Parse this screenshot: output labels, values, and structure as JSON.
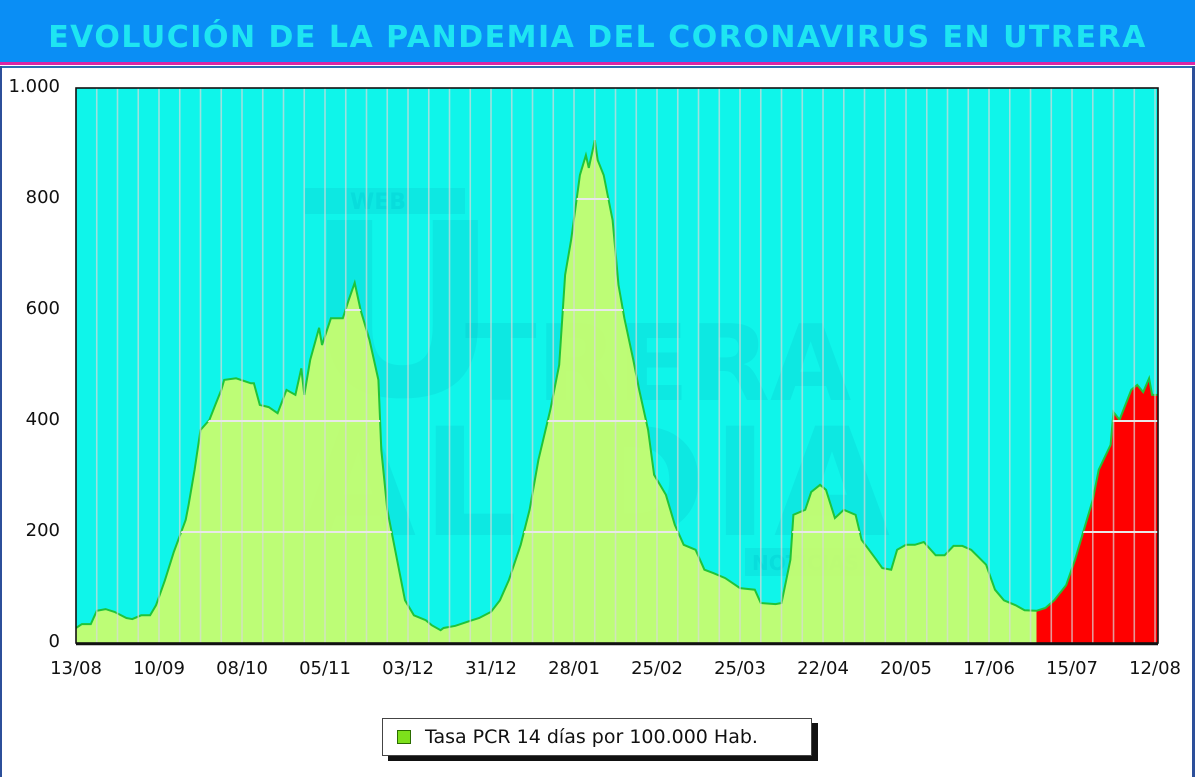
{
  "header": {
    "title": "EVOLUCIÓN DE LA PANDEMIA DEL CORONAVIRUS EN UTRERA"
  },
  "watermark": {
    "line1": "WEB",
    "line2": "U",
    "line3": "TRERA",
    "line4": "AL DIA",
    "line5": "NOTICIAS"
  },
  "legend": {
    "label": "Tasa PCR 14 días por 100.000 Hab.",
    "swatch_color": "#7de01b"
  },
  "colors": {
    "plot_background": "#0ff5ea",
    "area_fill": "#ccfd6b",
    "area_line": "#1fc43a",
    "highlight_fill": "#ff0000",
    "gridline": "#d9d9d9",
    "banner": "#0a8ef5",
    "banner_text": "#1ee5f2"
  },
  "chart_data": {
    "type": "area",
    "title": "EVOLUCIÓN DE LA PANDEMIA DEL CORONAVIRUS EN UTRERA",
    "xlabel": "",
    "ylabel": "",
    "ylim": [
      0,
      1000
    ],
    "yticks": [
      0,
      200,
      400,
      600,
      800,
      1000
    ],
    "ytick_labels": [
      "0",
      "200",
      "400",
      "600",
      "800",
      "1.000"
    ],
    "x_range_days": [
      0,
      365
    ],
    "xtick_days": [
      0,
      28,
      56,
      84,
      112,
      140,
      168,
      196,
      224,
      252,
      280,
      308,
      336,
      364
    ],
    "xtick_labels": [
      "13/08",
      "10/09",
      "08/10",
      "05/11",
      "03/12",
      "31/12",
      "28/01",
      "25/02",
      "25/03",
      "22/04",
      "20/05",
      "17/06",
      "15/07",
      "12/08"
    ],
    "grid": {
      "vertical_every_days": 7,
      "horizontal": true
    },
    "legend_position": "bottom-center",
    "highlight_from_day": 324,
    "series": [
      {
        "name": "Tasa PCR 14 días por 100.000 Hab.",
        "points": [
          [
            0,
            27
          ],
          [
            2,
            34
          ],
          [
            5,
            34
          ],
          [
            7,
            58
          ],
          [
            10,
            61
          ],
          [
            13,
            56
          ],
          [
            17,
            45
          ],
          [
            19,
            43
          ],
          [
            22,
            50
          ],
          [
            25,
            50
          ],
          [
            27,
            68
          ],
          [
            30,
            113
          ],
          [
            33,
            164
          ],
          [
            37,
            222
          ],
          [
            38,
            249
          ],
          [
            40,
            312
          ],
          [
            42,
            384
          ],
          [
            45,
            402
          ],
          [
            47,
            429
          ],
          [
            49,
            456
          ],
          [
            50,
            474
          ],
          [
            54,
            477
          ],
          [
            59,
            468
          ],
          [
            60,
            468
          ],
          [
            62,
            429
          ],
          [
            65,
            425
          ],
          [
            68,
            414
          ],
          [
            71,
            456
          ],
          [
            74,
            447
          ],
          [
            76,
            495
          ],
          [
            77,
            447
          ],
          [
            79,
            510
          ],
          [
            82,
            568
          ],
          [
            83,
            537
          ],
          [
            86,
            585
          ],
          [
            90,
            585
          ],
          [
            92,
            618
          ],
          [
            94,
            649
          ],
          [
            96,
            600
          ],
          [
            99,
            546
          ],
          [
            102,
            474
          ],
          [
            103,
            348
          ],
          [
            105,
            240
          ],
          [
            108,
            158
          ],
          [
            111,
            77
          ],
          [
            114,
            50
          ],
          [
            118,
            41
          ],
          [
            120,
            32
          ],
          [
            123,
            23
          ],
          [
            124,
            27
          ],
          [
            128,
            31
          ],
          [
            133,
            40
          ],
          [
            136,
            45
          ],
          [
            140,
            56
          ],
          [
            143,
            77
          ],
          [
            146,
            113
          ],
          [
            150,
            177
          ],
          [
            153,
            240
          ],
          [
            156,
            330
          ],
          [
            160,
            420
          ],
          [
            163,
            501
          ],
          [
            165,
            663
          ],
          [
            167,
            726
          ],
          [
            170,
            843
          ],
          [
            172,
            879
          ],
          [
            173,
            856
          ],
          [
            175,
            906
          ],
          [
            176,
            870
          ],
          [
            178,
            843
          ],
          [
            181,
            762
          ],
          [
            183,
            645
          ],
          [
            185,
            585
          ],
          [
            188,
            510
          ],
          [
            190,
            456
          ],
          [
            193,
            384
          ],
          [
            195,
            303
          ],
          [
            199,
            267
          ],
          [
            202,
            213
          ],
          [
            205,
            177
          ],
          [
            209,
            168
          ],
          [
            212,
            132
          ],
          [
            215,
            126
          ],
          [
            219,
            117
          ],
          [
            224,
            99
          ],
          [
            229,
            96
          ],
          [
            231,
            72
          ],
          [
            236,
            70
          ],
          [
            238,
            72
          ],
          [
            241,
            150
          ],
          [
            242,
            231
          ],
          [
            246,
            240
          ],
          [
            248,
            272
          ],
          [
            251,
            285
          ],
          [
            253,
            276
          ],
          [
            256,
            225
          ],
          [
            259,
            240
          ],
          [
            263,
            231
          ],
          [
            265,
            186
          ],
          [
            270,
            150
          ],
          [
            272,
            135
          ],
          [
            275,
            132
          ],
          [
            277,
            168
          ],
          [
            280,
            177
          ],
          [
            283,
            177
          ],
          [
            286,
            182
          ],
          [
            290,
            158
          ],
          [
            293,
            158
          ],
          [
            296,
            175
          ],
          [
            299,
            175
          ],
          [
            302,
            168
          ],
          [
            307,
            141
          ],
          [
            310,
            96
          ],
          [
            313,
            77
          ],
          [
            317,
            68
          ],
          [
            320,
            59
          ],
          [
            324,
            58
          ],
          [
            327,
            63
          ],
          [
            330,
            77
          ],
          [
            334,
            104
          ],
          [
            337,
            150
          ],
          [
            340,
            204
          ],
          [
            343,
            258
          ],
          [
            345,
            312
          ],
          [
            349,
            357
          ],
          [
            350,
            416
          ],
          [
            352,
            402
          ],
          [
            354,
            429
          ],
          [
            356,
            456
          ],
          [
            358,
            465
          ],
          [
            360,
            452
          ],
          [
            362,
            477
          ],
          [
            363,
            447
          ],
          [
            365,
            447
          ]
        ]
      }
    ]
  }
}
